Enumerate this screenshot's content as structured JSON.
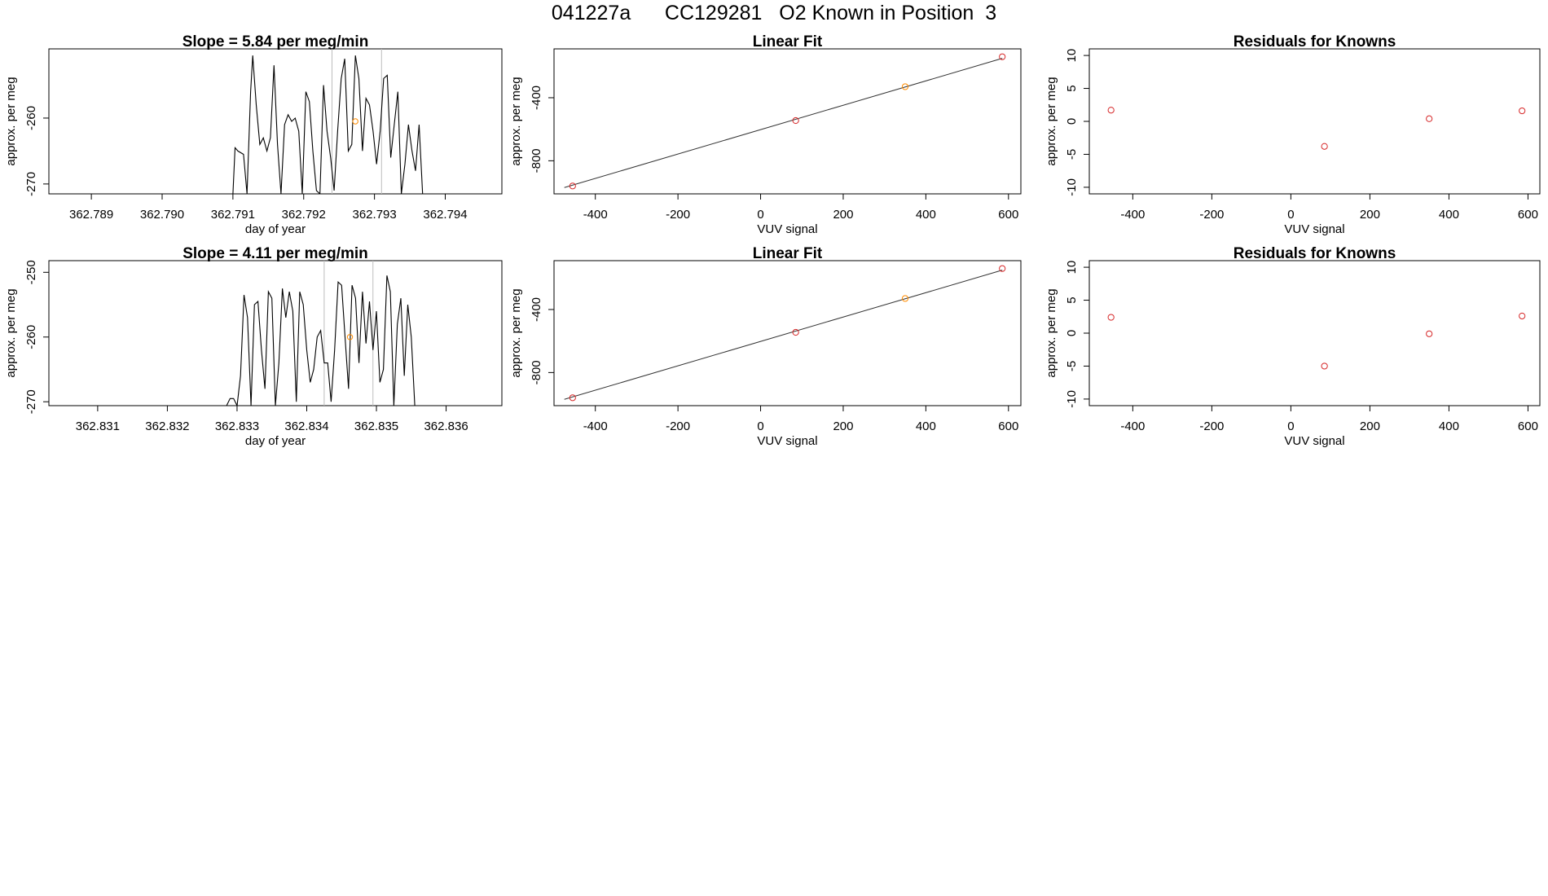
{
  "figure_title": {
    "run_id": "041227a",
    "cylinder": "CC129281",
    "description": "O2 Known in Position  3"
  },
  "colors": {
    "line": "#000000",
    "known_point": "#d62728",
    "highlight_point": "#ff8c00",
    "vline": "#bdbdbd"
  },
  "chart_data": [
    {
      "id": "time-series-1",
      "type": "line",
      "title": "Slope =  5.84  per meg/min",
      "xlabel": "day of year",
      "ylabel": "approx. per meg",
      "xlim": [
        362.7884,
        362.7948
      ],
      "ylim": [
        -271.5,
        -249.5
      ],
      "xticks": [
        "362.789",
        "362.790",
        "362.791",
        "362.792",
        "362.793",
        "362.794"
      ],
      "yticks": [
        "-260",
        "-270"
      ],
      "ytick_values": [
        -260,
        -270
      ],
      "vlines": [
        362.7924,
        362.7931
      ],
      "highlight_point": {
        "x": 362.79273,
        "y": -260.5
      },
      "series": [
        {
          "name": "signal",
          "x": [
            362.7884,
            362.791,
            362.79103,
            362.79107,
            362.79115,
            362.7912,
            362.79125,
            362.79128,
            362.79133,
            362.79138,
            362.79143,
            362.79148,
            362.79153,
            362.79158,
            362.79163,
            362.79168,
            362.79173,
            362.79178,
            362.79183,
            362.79188,
            362.79193,
            362.79198,
            362.79203,
            362.79208,
            362.79213,
            362.79218,
            362.79223,
            362.79228,
            362.79233,
            362.79238,
            362.79243,
            362.79248,
            362.79253,
            362.79258,
            362.79263,
            362.79268,
            362.79273,
            362.79278,
            362.79283,
            362.79288,
            362.79293,
            362.79298,
            362.79303,
            362.79308,
            362.79313,
            362.79318,
            362.79323,
            362.79328,
            362.79333,
            362.79338,
            362.79343,
            362.79348,
            362.79353,
            362.79358,
            362.79363,
            362.79368,
            362.79373,
            362.79378,
            362.79383,
            362.79388,
            362.7948
          ],
          "y": [
            -271.5,
            -271.5,
            -264.5,
            -265,
            -265.5,
            -271.5,
            -256,
            -250.5,
            -258,
            -264,
            -263,
            -265,
            -263,
            -252,
            -264,
            -271.5,
            -261,
            -259.5,
            -260.5,
            -260,
            -262,
            -271.5,
            -256,
            -257.5,
            -265,
            -271,
            -271.5,
            -255,
            -262,
            -266,
            -271,
            -262,
            -254,
            -251,
            -265,
            -264,
            -250.5,
            -254,
            -265,
            -257,
            -258,
            -262,
            -267,
            -262,
            -254,
            -253.5,
            -266,
            -261,
            -256,
            -271.5,
            -267,
            -261,
            -265,
            -268,
            -261,
            -271.5,
            -271.5,
            -271.5,
            -271.5,
            -271.5,
            -271.5
          ]
        }
      ]
    },
    {
      "id": "linear-fit-1",
      "type": "scatter",
      "title": "Linear Fit",
      "xlabel": "VUV signal",
      "ylabel": "approx. per meg",
      "xlim": [
        -500,
        630
      ],
      "ylim": [
        -1010,
        -90
      ],
      "xticks": [
        -400,
        -200,
        0,
        200,
        400,
        600
      ],
      "yticks": [
        -400,
        -800
      ],
      "fit_line": {
        "x": [
          -475,
          585
        ],
        "y": [
          -970,
          -150
        ]
      },
      "points": [
        {
          "x": -455,
          "y": -960,
          "color": "known"
        },
        {
          "x": 85,
          "y": -545,
          "color": "known"
        },
        {
          "x": 350,
          "y": -330,
          "color": "highlight"
        },
        {
          "x": 585,
          "y": -140,
          "color": "known"
        }
      ]
    },
    {
      "id": "residuals-1",
      "type": "scatter",
      "title": "Residuals for Knowns",
      "xlabel": "VUV signal",
      "ylabel": "approx. per meg",
      "xlim": [
        -510,
        630
      ],
      "ylim": [
        -11,
        11
      ],
      "xticks": [
        -400,
        -200,
        0,
        200,
        400,
        600
      ],
      "yticks": [
        10,
        5,
        0,
        -5,
        -10
      ],
      "points": [
        {
          "x": -455,
          "y": 1.7
        },
        {
          "x": 85,
          "y": -3.8
        },
        {
          "x": 350,
          "y": 0.4
        },
        {
          "x": 585,
          "y": 1.6
        }
      ]
    },
    {
      "id": "time-series-2",
      "type": "line",
      "title": "Slope =  4.11  per meg/min",
      "xlabel": "day of year",
      "ylabel": "approx. per meg",
      "xlim": [
        362.8303,
        362.8368
      ],
      "ylim": [
        -270.6,
        -248.2
      ],
      "xticks": [
        "362.831",
        "362.832",
        "362.833",
        "362.834",
        "362.835",
        "362.836"
      ],
      "yticks": [
        "-250",
        "-260",
        "-270"
      ],
      "ytick_values": [
        -250,
        -260,
        -270
      ],
      "vlines": [
        362.83425,
        362.83495
      ],
      "highlight_point": {
        "x": 362.83462,
        "y": -260
      },
      "series": [
        {
          "name": "signal",
          "x": [
            362.8303,
            362.83285,
            362.8329,
            362.83295,
            362.833,
            362.83305,
            362.8331,
            362.83315,
            362.8332,
            362.83325,
            362.8333,
            362.83335,
            362.8334,
            362.83345,
            362.8335,
            362.83355,
            362.8336,
            362.83365,
            362.8337,
            362.83375,
            362.8338,
            362.83385,
            362.8339,
            362.83395,
            362.834,
            362.83405,
            362.8341,
            362.83415,
            362.8342,
            362.83425,
            362.8343,
            362.83435,
            362.8344,
            362.83445,
            362.8345,
            362.83455,
            362.8346,
            362.83465,
            362.8347,
            362.83475,
            362.8348,
            362.83485,
            362.8349,
            362.83495,
            362.835,
            362.83505,
            362.8351,
            362.83515,
            362.8352,
            362.83525,
            362.8353,
            362.83535,
            362.8354,
            362.83545,
            362.8355,
            362.83555,
            362.8356,
            362.83565,
            362.8357,
            362.8368
          ],
          "y": [
            -270.6,
            -270.6,
            -269.5,
            -269.5,
            -270.6,
            -266,
            -253.5,
            -257,
            -270.6,
            -255,
            -254.5,
            -262,
            -268,
            -253,
            -254,
            -270.6,
            -264,
            -252.5,
            -257,
            -253,
            -256,
            -270,
            -253,
            -255,
            -262,
            -267,
            -265,
            -260,
            -259,
            -264,
            -264,
            -270,
            -262,
            -251.5,
            -252,
            -260,
            -268,
            -252,
            -254,
            -264,
            -253,
            -261,
            -254.5,
            -262,
            -256,
            -267,
            -265,
            -250.5,
            -253,
            -270.6,
            -258,
            -254,
            -266,
            -255,
            -260,
            -270.6,
            -270.6,
            -270.6,
            -270.6,
            -270.6
          ]
        }
      ]
    },
    {
      "id": "linear-fit-2",
      "type": "scatter",
      "title": "Linear Fit",
      "xlabel": "VUV signal",
      "ylabel": "approx. per meg",
      "xlim": [
        -500,
        630
      ],
      "ylim": [
        -1010,
        -90
      ],
      "xticks": [
        -400,
        -200,
        0,
        200,
        400,
        600
      ],
      "yticks": [
        -400,
        -800
      ],
      "fit_line": {
        "x": [
          -475,
          585
        ],
        "y": [
          -970,
          -150
        ]
      },
      "points": [
        {
          "x": -455,
          "y": -960,
          "color": "known"
        },
        {
          "x": 85,
          "y": -545,
          "color": "known"
        },
        {
          "x": 350,
          "y": -330,
          "color": "highlight"
        },
        {
          "x": 585,
          "y": -140,
          "color": "known"
        }
      ]
    },
    {
      "id": "residuals-2",
      "type": "scatter",
      "title": "Residuals for Knowns",
      "xlabel": "VUV signal",
      "ylabel": "approx. per meg",
      "xlim": [
        -510,
        630
      ],
      "ylim": [
        -11,
        11
      ],
      "xticks": [
        -400,
        -200,
        0,
        200,
        400,
        600
      ],
      "yticks": [
        10,
        5,
        0,
        -5,
        -10
      ],
      "points": [
        {
          "x": -455,
          "y": 2.4
        },
        {
          "x": 85,
          "y": -5.0
        },
        {
          "x": 350,
          "y": -0.1
        },
        {
          "x": 585,
          "y": 2.6
        }
      ]
    }
  ]
}
